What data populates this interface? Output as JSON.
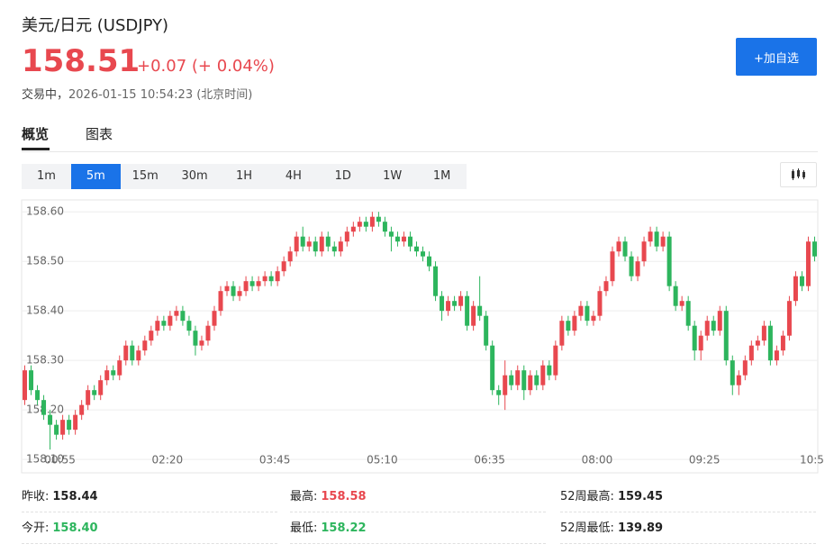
{
  "header": {
    "title": "美元/日元 (USDJPY)",
    "price": "158.51",
    "change": "+0.07 (+ 0.04%)",
    "status": "交易中，",
    "time": "2026-01-15 10:54:23 (北京时间)",
    "button": "+加自选"
  },
  "tabs": [
    "概览",
    "图表"
  ],
  "intervals": [
    "1m",
    "5m",
    "15m",
    "30m",
    "1H",
    "4H",
    "1D",
    "1W",
    "1M"
  ],
  "stats": [
    [
      {
        "label": "昨收:",
        "value": "158.44"
      },
      {
        "label": "最高:",
        "value": "158.58"
      },
      {
        "label": "52周最高:",
        "value": "159.45"
      }
    ],
    [
      {
        "label": "今开:",
        "value": "158.40"
      },
      {
        "label": "最低:",
        "value": "158.22"
      },
      {
        "label": "52周最低:",
        "value": "139.89"
      }
    ]
  ],
  "chart_data": {
    "type": "candlestick",
    "categories": [
      null,
      null,
      null,
      null,
      null,
      "00:55",
      null,
      null,
      null,
      null,
      null,
      null,
      null,
      null,
      null,
      null,
      null,
      null,
      null,
      null,
      null,
      null,
      "02:20",
      null,
      null,
      null,
      null,
      null,
      null,
      null,
      null,
      null,
      null,
      null,
      null,
      null,
      null,
      null,
      null,
      "03:45",
      null,
      null,
      null,
      null,
      null,
      null,
      null,
      null,
      null,
      null,
      null,
      null,
      null,
      null,
      null,
      null,
      "05:10",
      null,
      null,
      null,
      null,
      null,
      null,
      null,
      null,
      null,
      null,
      null,
      null,
      null,
      null,
      null,
      null,
      "06:35",
      null,
      null,
      null,
      null,
      null,
      null,
      null,
      null,
      null,
      null,
      null,
      null,
      null,
      null,
      null,
      null,
      "08:00",
      null,
      null,
      null,
      null,
      null,
      null,
      null,
      null,
      null,
      null,
      null,
      null,
      null,
      null,
      null,
      null,
      "09:25",
      null,
      null,
      null,
      null,
      null,
      null,
      null,
      null,
      null,
      null,
      null,
      null,
      null,
      null,
      null,
      null,
      "10:5",
      null
    ],
    "open": [
      158.22,
      158.28,
      158.24,
      158.22,
      158.19,
      158.17,
      158.15,
      158.18,
      158.16,
      158.19,
      158.21,
      158.24,
      158.23,
      158.26,
      158.28,
      158.27,
      158.3,
      158.33,
      158.3,
      158.32,
      158.34,
      158.36,
      158.38,
      158.37,
      158.39,
      158.4,
      158.38,
      158.36,
      158.33,
      158.34,
      158.37,
      158.4,
      158.44,
      158.45,
      158.43,
      158.44,
      158.46,
      158.45,
      158.46,
      158.47,
      158.46,
      158.48,
      158.5,
      158.52,
      158.55,
      158.53,
      158.54,
      158.52,
      158.55,
      158.53,
      158.52,
      158.54,
      158.56,
      158.57,
      158.58,
      158.57,
      158.59,
      158.58,
      158.56,
      158.55,
      158.54,
      158.55,
      158.53,
      158.52,
      158.51,
      158.49,
      158.43,
      158.4,
      158.42,
      158.41,
      158.43,
      158.37,
      158.41,
      158.39,
      158.33,
      158.24,
      158.23,
      158.27,
      158.25,
      158.28,
      158.24,
      158.27,
      158.25,
      158.29,
      158.27,
      158.33,
      158.38,
      158.36,
      158.39,
      158.41,
      158.38,
      158.39,
      158.44,
      158.46,
      158.52,
      158.54,
      158.51,
      158.47,
      158.5,
      158.54,
      158.56,
      158.53,
      158.55,
      158.45,
      158.41,
      158.42,
      158.37,
      158.32,
      158.35,
      158.38,
      158.36,
      158.4,
      158.3,
      158.25,
      158.27,
      158.3,
      158.33,
      158.34,
      158.37,
      158.3,
      158.32,
      158.35,
      158.42,
      158.47,
      158.45,
      158.54
    ],
    "close": [
      158.28,
      158.24,
      158.22,
      158.19,
      158.17,
      158.15,
      158.18,
      158.16,
      158.19,
      158.21,
      158.24,
      158.23,
      158.26,
      158.28,
      158.27,
      158.3,
      158.33,
      158.3,
      158.32,
      158.34,
      158.36,
      158.38,
      158.37,
      158.39,
      158.4,
      158.38,
      158.36,
      158.33,
      158.34,
      158.37,
      158.4,
      158.44,
      158.45,
      158.43,
      158.44,
      158.46,
      158.45,
      158.46,
      158.47,
      158.46,
      158.48,
      158.5,
      158.52,
      158.55,
      158.53,
      158.54,
      158.52,
      158.55,
      158.53,
      158.52,
      158.54,
      158.56,
      158.57,
      158.58,
      158.57,
      158.59,
      158.58,
      158.56,
      158.55,
      158.54,
      158.55,
      158.53,
      158.52,
      158.51,
      158.49,
      158.43,
      158.4,
      158.42,
      158.41,
      158.43,
      158.37,
      158.41,
      158.39,
      158.33,
      158.24,
      158.23,
      158.27,
      158.25,
      158.28,
      158.24,
      158.27,
      158.25,
      158.29,
      158.27,
      158.33,
      158.38,
      158.36,
      158.39,
      158.41,
      158.38,
      158.39,
      158.44,
      158.46,
      158.52,
      158.54,
      158.51,
      158.47,
      158.5,
      158.54,
      158.56,
      158.53,
      158.55,
      158.45,
      158.41,
      158.42,
      158.37,
      158.32,
      158.35,
      158.38,
      158.36,
      158.4,
      158.3,
      158.25,
      158.27,
      158.3,
      158.33,
      158.34,
      158.37,
      158.3,
      158.32,
      158.35,
      158.42,
      158.47,
      158.45,
      158.54,
      158.51
    ],
    "high": [
      158.29,
      158.29,
      158.25,
      158.23,
      158.2,
      158.18,
      158.19,
      158.19,
      158.2,
      158.22,
      158.25,
      158.25,
      158.27,
      158.29,
      158.29,
      158.31,
      158.34,
      158.34,
      158.33,
      158.35,
      158.37,
      158.39,
      158.39,
      158.4,
      158.41,
      158.41,
      158.39,
      158.37,
      158.35,
      158.38,
      158.41,
      158.45,
      158.46,
      158.46,
      158.45,
      158.47,
      158.47,
      158.47,
      158.48,
      158.48,
      158.49,
      158.51,
      158.53,
      158.56,
      158.57,
      158.55,
      158.55,
      158.56,
      158.56,
      158.54,
      158.55,
      158.57,
      158.58,
      158.59,
      158.59,
      158.6,
      158.6,
      158.59,
      158.57,
      158.56,
      158.56,
      158.56,
      158.54,
      158.53,
      158.52,
      158.5,
      158.44,
      158.43,
      158.43,
      158.44,
      158.44,
      158.42,
      158.47,
      158.4,
      158.34,
      158.25,
      158.3,
      158.28,
      158.29,
      158.29,
      158.28,
      158.28,
      158.3,
      158.3,
      158.34,
      158.39,
      158.39,
      158.4,
      158.42,
      158.42,
      158.4,
      158.45,
      158.47,
      158.53,
      158.55,
      158.55,
      158.52,
      158.51,
      158.55,
      158.57,
      158.57,
      158.56,
      158.56,
      158.46,
      158.43,
      158.43,
      158.38,
      158.36,
      158.39,
      158.39,
      158.41,
      158.41,
      158.31,
      158.28,
      158.31,
      158.34,
      158.35,
      158.38,
      158.38,
      158.33,
      158.36,
      158.43,
      158.48,
      158.48,
      158.55,
      158.55
    ],
    "low": [
      158.21,
      158.23,
      158.21,
      158.18,
      158.12,
      158.14,
      158.14,
      158.15,
      158.15,
      158.18,
      158.2,
      158.22,
      158.22,
      158.25,
      158.26,
      158.26,
      158.29,
      158.29,
      158.29,
      158.31,
      158.33,
      158.35,
      158.36,
      158.36,
      158.38,
      158.37,
      158.35,
      158.31,
      158.32,
      158.33,
      158.36,
      158.39,
      158.43,
      158.42,
      158.42,
      158.43,
      158.44,
      158.44,
      158.45,
      158.45,
      158.45,
      158.47,
      158.49,
      158.51,
      158.52,
      158.52,
      158.51,
      158.51,
      158.52,
      158.51,
      158.51,
      158.53,
      158.55,
      158.56,
      158.56,
      158.56,
      158.57,
      158.55,
      158.52,
      158.53,
      158.53,
      158.52,
      158.51,
      158.5,
      158.48,
      158.42,
      158.38,
      158.39,
      158.4,
      158.4,
      158.36,
      158.36,
      158.38,
      158.32,
      158.23,
      158.21,
      158.2,
      158.24,
      158.24,
      158.22,
      158.23,
      158.24,
      158.24,
      158.26,
      158.26,
      158.32,
      158.35,
      158.35,
      158.38,
      158.37,
      158.37,
      158.38,
      158.43,
      158.45,
      158.51,
      158.5,
      158.46,
      158.46,
      158.49,
      158.53,
      158.52,
      158.52,
      158.44,
      158.4,
      158.4,
      158.36,
      158.3,
      158.3,
      158.34,
      158.35,
      158.35,
      158.29,
      158.23,
      158.23,
      158.26,
      158.29,
      158.32,
      158.33,
      158.29,
      158.29,
      158.31,
      158.34,
      158.41,
      158.44,
      158.44,
      158.5
    ],
    "colors": {
      "up": "#e8484f",
      "down": "#2db55d"
    },
    "ylim": [
      158.073,
      158.624
    ],
    "yticks": [
      {
        "value": 158.1,
        "label": "158.10"
      },
      {
        "value": 158.2,
        "label": "158.20"
      },
      {
        "value": 158.3,
        "label": "158.30"
      },
      {
        "value": 158.4,
        "label": "158.40"
      },
      {
        "value": 158.5,
        "label": "158.50"
      },
      {
        "value": 158.6,
        "label": "158.60"
      }
    ],
    "grid": true
  }
}
